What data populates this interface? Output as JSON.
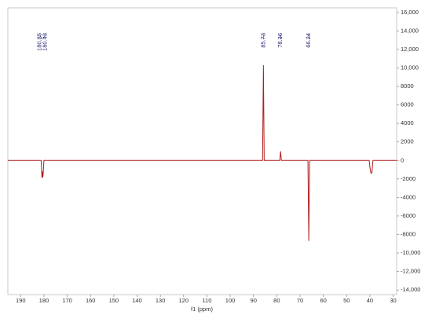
{
  "chart_data": {
    "type": "line",
    "xlabel": "f1 (ppm)",
    "xlim": [
      195.5,
      28.5
    ],
    "xticks": [
      190,
      180,
      170,
      160,
      150,
      140,
      130,
      120,
      110,
      100,
      90,
      80,
      70,
      60,
      50,
      40,
      30
    ],
    "ylim": [
      -14500,
      16500
    ],
    "yticks": [
      {
        "value": 16000,
        "label": "16,000"
      },
      {
        "value": 14000,
        "label": "14,000"
      },
      {
        "value": 12000,
        "label": "12,000"
      },
      {
        "value": 10000,
        "label": "10,000"
      },
      8000,
      6000,
      4000,
      2000,
      0,
      -2000,
      -4000,
      -6000,
      -8000,
      {
        "value": -10000,
        "label": "-10,000"
      },
      {
        "value": -12000,
        "label": "-12,000"
      },
      {
        "value": -14000,
        "label": "-14,000"
      }
    ],
    "peaks": [
      180.85,
      180.43,
      85.73,
      78.36,
      66.24
    ],
    "grid": false,
    "x": [
      195.5,
      181.2,
      180.85,
      180.6,
      180.43,
      180.0,
      86.1,
      85.73,
      85.4,
      78.7,
      78.36,
      78.0,
      66.6,
      66.24,
      65.9,
      40.3,
      39.9,
      39.5,
      39.1,
      38.7,
      28.5
    ],
    "series": [
      {
        "color": "#b01c1c",
        "values": [
          0,
          0,
          -1900,
          -1200,
          -1800,
          0,
          0,
          10300,
          0,
          0,
          1000,
          0,
          0,
          -8700,
          0,
          0,
          -900,
          -1400,
          -1300,
          0,
          0
        ]
      }
    ]
  }
}
